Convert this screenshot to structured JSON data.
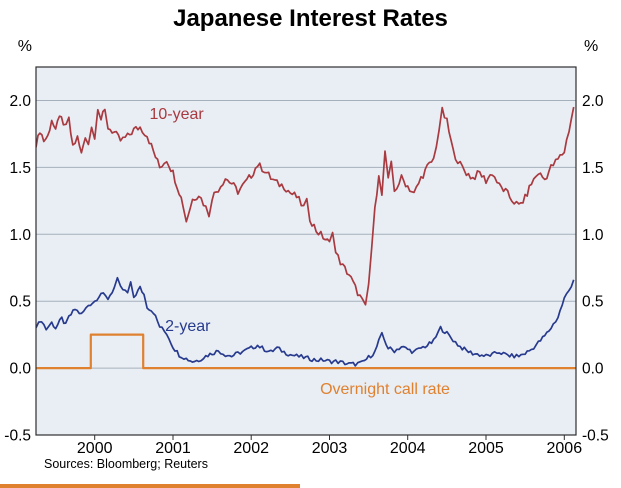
{
  "chart_data": {
    "type": "line",
    "title": "Japanese Interest Rates",
    "unit_left": "%",
    "unit_right": "%",
    "source_note": "Sources: Bloomberg; Reuters",
    "x_range": [
      1999.25,
      2006.15
    ],
    "y_range": [
      -0.5,
      2.25
    ],
    "x_ticks": [
      2000,
      2001,
      2002,
      2003,
      2004,
      2005,
      2006
    ],
    "y_ticks": [
      {
        "value": 2.0,
        "label": "2.0"
      },
      {
        "value": 1.5,
        "label": "1.5"
      },
      {
        "value": 1.0,
        "label": "1.0"
      },
      {
        "value": 0.5,
        "label": "0.5"
      },
      {
        "value": 0.0,
        "label": "0.0"
      },
      {
        "value": -0.5,
        "label": "-0.5"
      }
    ],
    "grid_values": [
      0.0,
      0.5,
      1.0,
      1.5,
      2.0
    ],
    "colors": {
      "plot_background": "#e9eef4",
      "grid": "#a6b0bc",
      "frame": "#2e2e2e",
      "ten_year": "#a83a40",
      "two_year": "#273a8e",
      "overnight": "#e0812f"
    },
    "series": [
      {
        "name": "10-year",
        "color_key": "ten_year",
        "jitter": 0.028,
        "points": [
          [
            1999.25,
            1.65
          ],
          [
            1999.3,
            1.78
          ],
          [
            1999.35,
            1.7
          ],
          [
            1999.4,
            1.73
          ],
          [
            1999.45,
            1.86
          ],
          [
            1999.5,
            1.76
          ],
          [
            1999.55,
            1.9
          ],
          [
            1999.6,
            1.8
          ],
          [
            1999.67,
            1.85
          ],
          [
            1999.72,
            1.66
          ],
          [
            1999.78,
            1.72
          ],
          [
            1999.83,
            1.6
          ],
          [
            1999.88,
            1.74
          ],
          [
            1999.92,
            1.68
          ],
          [
            1999.96,
            1.8
          ],
          [
            2000.0,
            1.74
          ],
          [
            2000.04,
            1.95
          ],
          [
            2000.08,
            1.86
          ],
          [
            2000.13,
            1.92
          ],
          [
            2000.17,
            1.8
          ],
          [
            2000.25,
            1.76
          ],
          [
            2000.33,
            1.7
          ],
          [
            2000.42,
            1.73
          ],
          [
            2000.5,
            1.78
          ],
          [
            2000.58,
            1.8
          ],
          [
            2000.67,
            1.74
          ],
          [
            2000.75,
            1.62
          ],
          [
            2000.83,
            1.5
          ],
          [
            2000.92,
            1.56
          ],
          [
            2001.0,
            1.46
          ],
          [
            2001.08,
            1.32
          ],
          [
            2001.13,
            1.22
          ],
          [
            2001.17,
            1.1
          ],
          [
            2001.25,
            1.26
          ],
          [
            2001.33,
            1.3
          ],
          [
            2001.42,
            1.2
          ],
          [
            2001.46,
            1.15
          ],
          [
            2001.5,
            1.28
          ],
          [
            2001.58,
            1.34
          ],
          [
            2001.67,
            1.42
          ],
          [
            2001.75,
            1.38
          ],
          [
            2001.83,
            1.32
          ],
          [
            2001.92,
            1.38
          ],
          [
            2002.0,
            1.44
          ],
          [
            2002.08,
            1.52
          ],
          [
            2002.17,
            1.48
          ],
          [
            2002.25,
            1.42
          ],
          [
            2002.33,
            1.38
          ],
          [
            2002.42,
            1.36
          ],
          [
            2002.5,
            1.31
          ],
          [
            2002.58,
            1.28
          ],
          [
            2002.67,
            1.2
          ],
          [
            2002.71,
            1.24
          ],
          [
            2002.75,
            1.12
          ],
          [
            2002.83,
            1.03
          ],
          [
            2002.92,
            0.98
          ],
          [
            2003.0,
            0.93
          ],
          [
            2003.04,
            1.04
          ],
          [
            2003.08,
            0.86
          ],
          [
            2003.17,
            0.76
          ],
          [
            2003.25,
            0.7
          ],
          [
            2003.33,
            0.6
          ],
          [
            2003.42,
            0.5
          ],
          [
            2003.46,
            0.45
          ],
          [
            2003.5,
            0.62
          ],
          [
            2003.54,
            0.9
          ],
          [
            2003.58,
            1.18
          ],
          [
            2003.63,
            1.46
          ],
          [
            2003.67,
            1.28
          ],
          [
            2003.71,
            1.62
          ],
          [
            2003.75,
            1.4
          ],
          [
            2003.79,
            1.52
          ],
          [
            2003.83,
            1.32
          ],
          [
            2003.92,
            1.42
          ],
          [
            2004.0,
            1.36
          ],
          [
            2004.08,
            1.3
          ],
          [
            2004.17,
            1.42
          ],
          [
            2004.25,
            1.5
          ],
          [
            2004.33,
            1.56
          ],
          [
            2004.4,
            1.78
          ],
          [
            2004.44,
            1.92
          ],
          [
            2004.5,
            1.84
          ],
          [
            2004.58,
            1.62
          ],
          [
            2004.67,
            1.52
          ],
          [
            2004.75,
            1.46
          ],
          [
            2004.83,
            1.42
          ],
          [
            2004.92,
            1.46
          ],
          [
            2005.0,
            1.4
          ],
          [
            2005.08,
            1.46
          ],
          [
            2005.17,
            1.36
          ],
          [
            2005.25,
            1.32
          ],
          [
            2005.33,
            1.26
          ],
          [
            2005.42,
            1.21
          ],
          [
            2005.5,
            1.27
          ],
          [
            2005.58,
            1.38
          ],
          [
            2005.67,
            1.46
          ],
          [
            2005.75,
            1.41
          ],
          [
            2005.83,
            1.5
          ],
          [
            2005.92,
            1.56
          ],
          [
            2006.0,
            1.62
          ],
          [
            2006.06,
            1.78
          ],
          [
            2006.12,
            1.95
          ]
        ]
      },
      {
        "name": "2-year",
        "color_key": "two_year",
        "jitter": 0.016,
        "points": [
          [
            1999.25,
            0.3
          ],
          [
            1999.32,
            0.36
          ],
          [
            1999.38,
            0.29
          ],
          [
            1999.45,
            0.34
          ],
          [
            1999.5,
            0.3
          ],
          [
            1999.58,
            0.37
          ],
          [
            1999.63,
            0.32
          ],
          [
            1999.67,
            0.38
          ],
          [
            1999.75,
            0.44
          ],
          [
            1999.83,
            0.4
          ],
          [
            1999.92,
            0.47
          ],
          [
            2000.0,
            0.5
          ],
          [
            2000.08,
            0.56
          ],
          [
            2000.17,
            0.52
          ],
          [
            2000.25,
            0.6
          ],
          [
            2000.29,
            0.66
          ],
          [
            2000.33,
            0.6
          ],
          [
            2000.42,
            0.56
          ],
          [
            2000.46,
            0.63
          ],
          [
            2000.5,
            0.53
          ],
          [
            2000.58,
            0.6
          ],
          [
            2000.63,
            0.55
          ],
          [
            2000.67,
            0.46
          ],
          [
            2000.75,
            0.42
          ],
          [
            2000.83,
            0.31
          ],
          [
            2000.92,
            0.26
          ],
          [
            2001.0,
            0.16
          ],
          [
            2001.08,
            0.1
          ],
          [
            2001.17,
            0.07
          ],
          [
            2001.25,
            0.05
          ],
          [
            2001.33,
            0.06
          ],
          [
            2001.42,
            0.09
          ],
          [
            2001.5,
            0.11
          ],
          [
            2001.58,
            0.13
          ],
          [
            2001.67,
            0.1
          ],
          [
            2001.75,
            0.09
          ],
          [
            2001.83,
            0.11
          ],
          [
            2001.92,
            0.13
          ],
          [
            2002.0,
            0.15
          ],
          [
            2002.08,
            0.17
          ],
          [
            2002.17,
            0.14
          ],
          [
            2002.25,
            0.12
          ],
          [
            2002.33,
            0.15
          ],
          [
            2002.42,
            0.12
          ],
          [
            2002.5,
            0.1
          ],
          [
            2002.58,
            0.09
          ],
          [
            2002.67,
            0.08
          ],
          [
            2002.75,
            0.07
          ],
          [
            2002.83,
            0.06
          ],
          [
            2002.92,
            0.06
          ],
          [
            2003.0,
            0.05
          ],
          [
            2003.08,
            0.05
          ],
          [
            2003.17,
            0.04
          ],
          [
            2003.25,
            0.03
          ],
          [
            2003.33,
            0.03
          ],
          [
            2003.42,
            0.04
          ],
          [
            2003.5,
            0.08
          ],
          [
            2003.58,
            0.12
          ],
          [
            2003.63,
            0.2
          ],
          [
            2003.67,
            0.25
          ],
          [
            2003.75,
            0.15
          ],
          [
            2003.83,
            0.13
          ],
          [
            2003.92,
            0.16
          ],
          [
            2004.0,
            0.14
          ],
          [
            2004.08,
            0.12
          ],
          [
            2004.17,
            0.15
          ],
          [
            2004.25,
            0.17
          ],
          [
            2004.33,
            0.2
          ],
          [
            2004.42,
            0.3
          ],
          [
            2004.5,
            0.26
          ],
          [
            2004.58,
            0.21
          ],
          [
            2004.67,
            0.16
          ],
          [
            2004.75,
            0.13
          ],
          [
            2004.83,
            0.11
          ],
          [
            2004.92,
            0.1
          ],
          [
            2005.0,
            0.09
          ],
          [
            2005.08,
            0.1
          ],
          [
            2005.17,
            0.12
          ],
          [
            2005.25,
            0.1
          ],
          [
            2005.33,
            0.09
          ],
          [
            2005.42,
            0.09
          ],
          [
            2005.5,
            0.11
          ],
          [
            2005.58,
            0.14
          ],
          [
            2005.67,
            0.19
          ],
          [
            2005.75,
            0.24
          ],
          [
            2005.83,
            0.3
          ],
          [
            2005.92,
            0.38
          ],
          [
            2006.0,
            0.52
          ],
          [
            2006.06,
            0.58
          ],
          [
            2006.12,
            0.66
          ]
        ]
      },
      {
        "name": "Overnight call rate",
        "color_key": "overnight",
        "jitter": 0,
        "points": [
          [
            1999.25,
            0.0
          ],
          [
            1999.95,
            0.0
          ],
          [
            1999.95,
            0.25
          ],
          [
            2000.62,
            0.25
          ],
          [
            2000.62,
            0.0
          ],
          [
            2006.15,
            0.0
          ]
        ]
      }
    ],
    "annotations": [
      {
        "text": "10-year",
        "x": 2000.7,
        "y": 1.89,
        "color_key": "ten_year"
      },
      {
        "text": "2-year",
        "x": 2000.9,
        "y": 0.31,
        "color_key": "two_year"
      },
      {
        "text": "Overnight call rate",
        "x": 2002.88,
        "y": -0.16,
        "color_key": "overnight"
      }
    ]
  }
}
